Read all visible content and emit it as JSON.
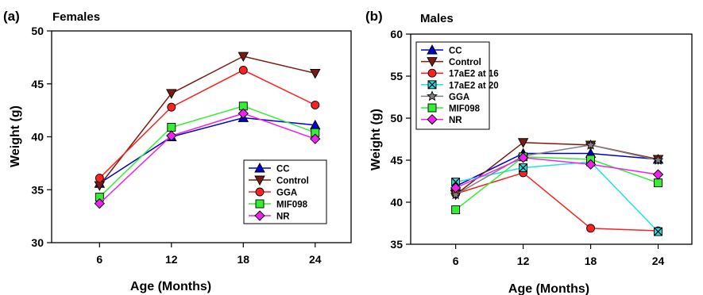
{
  "panels": [
    {
      "label": "(a)",
      "title": "Females",
      "xlabel": "Age (Months)",
      "ylabel": "Weight (g)"
    },
    {
      "label": "(b)",
      "title": "Males",
      "xlabel": "Age (Months)",
      "ylabel": "Weight (g)"
    }
  ],
  "chart_data": [
    {
      "type": "line",
      "title": "Females",
      "xlabel": "Age (Months)",
      "ylabel": "Weight (g)",
      "x": [
        6,
        12,
        18,
        24
      ],
      "xlim": [
        2,
        27
      ],
      "ylim": [
        30,
        50
      ],
      "yticks": [
        30,
        35,
        40,
        45,
        50
      ],
      "legend_position": "bottom-right",
      "series": [
        {
          "name": "CC",
          "color": "#0000cc",
          "marker": "triangle-up",
          "values": [
            35.6,
            40.0,
            41.8,
            41.1
          ]
        },
        {
          "name": "Control",
          "color": "#7a1a12",
          "marker": "triangle-down",
          "values": [
            35.4,
            44.1,
            47.6,
            46.0
          ]
        },
        {
          "name": "GGA",
          "color": "#ff2020",
          "marker": "circle",
          "values": [
            36.1,
            42.8,
            46.3,
            43.0
          ]
        },
        {
          "name": "MIF098",
          "color": "#33ee33",
          "marker": "square",
          "values": [
            34.3,
            40.9,
            42.9,
            40.4
          ]
        },
        {
          "name": "NR",
          "color": "#ee22ee",
          "marker": "diamond",
          "values": [
            33.7,
            40.1,
            42.2,
            39.8
          ]
        }
      ]
    },
    {
      "type": "line",
      "title": "Males",
      "xlabel": "Age (Months)",
      "ylabel": "Weight (g)",
      "x": [
        6,
        12,
        18,
        24
      ],
      "xlim": [
        2,
        27
      ],
      "ylim": [
        35,
        60
      ],
      "yticks": [
        35,
        40,
        45,
        50,
        55,
        60
      ],
      "legend_position": "top-left",
      "series": [
        {
          "name": "CC",
          "color": "#0000cc",
          "marker": "triangle-up",
          "values": [
            41.9,
            45.8,
            45.8,
            45.1
          ]
        },
        {
          "name": "Control",
          "color": "#7a1a12",
          "marker": "triangle-down",
          "values": [
            40.9,
            47.1,
            46.8,
            45.1
          ]
        },
        {
          "name": "17aE2 at 16",
          "color": "#ff2020",
          "marker": "circle",
          "values": [
            41.0,
            43.5,
            36.9,
            36.6
          ]
        },
        {
          "name": "17aE2 at 20",
          "color": "#22e0e0",
          "marker": "square-x",
          "values": [
            42.4,
            44.1,
            44.8,
            36.5
          ]
        },
        {
          "name": "GGA",
          "color": "#808080",
          "marker": "star",
          "values": [
            40.9,
            45.5,
            46.8,
            45.0
          ]
        },
        {
          "name": "MIF098",
          "color": "#33ee33",
          "marker": "square",
          "values": [
            39.1,
            45.4,
            45.1,
            42.3
          ]
        },
        {
          "name": "NR",
          "color": "#ee22ee",
          "marker": "diamond",
          "values": [
            41.7,
            45.3,
            44.5,
            43.3
          ]
        }
      ]
    }
  ]
}
